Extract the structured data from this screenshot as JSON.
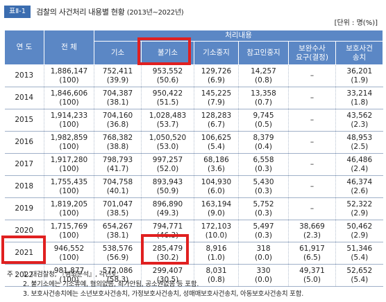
{
  "header": {
    "tag": "표Ⅱ-1",
    "title": "검찰의 사건처리 내용별 현황",
    "subtitle": "(2013년~2022년)",
    "unit": "[단위 : 명(%)]"
  },
  "table": {
    "year_header": "연 도",
    "total_header": "전 체",
    "group_header": "처리내용",
    "columns": [
      "기소",
      "불기소",
      "기소중지",
      "참고인중지",
      "보완수사\n요구(결정)",
      "보호사건\n송치"
    ],
    "rows": [
      {
        "year": "2013",
        "cells": [
          "1,886,147\n(100)",
          "752,411\n(39.9)",
          "953,552\n(50.6)",
          "129,726\n(6.9)",
          "14,257\n(0.8)",
          "–",
          "36,201\n(1.9)"
        ]
      },
      {
        "year": "2014",
        "cells": [
          "1,846,606\n(100)",
          "704,387\n(38.1)",
          "950,422\n(51.5)",
          "145,225\n(7.9)",
          "13,358\n(0.7)",
          "–",
          "33,214\n(1.8)"
        ]
      },
      {
        "year": "2015",
        "cells": [
          "1,914,233\n(100)",
          "704,160\n(36.8)",
          "1,028,483\n(53.7)",
          "128,283\n(6.7)",
          "9,745\n(0.5)",
          "–",
          "43,562\n(2.3)"
        ]
      },
      {
        "year": "2016",
        "cells": [
          "1,982,859\n(100)",
          "768,382\n(38.8)",
          "1,050,520\n(53.0)",
          "106,625\n(5.4)",
          "8,379\n(0.4)",
          "–",
          "48,953\n(2.5)"
        ]
      },
      {
        "year": "2017",
        "cells": [
          "1,917,280\n(100)",
          "798,793\n(41.7)",
          "997,257\n(52.0)",
          "68,186\n(3.6)",
          "6,558\n(0.3)",
          "–",
          "46,486\n(2.4)"
        ]
      },
      {
        "year": "2018",
        "cells": [
          "1,755,435\n(100)",
          "704,758\n(40.1)",
          "893,943\n(50.9)",
          "104,930\n(6.0)",
          "5,430\n(0.3)",
          "–",
          "46,374\n(2.6)"
        ]
      },
      {
        "year": "2019",
        "cells": [
          "1,819,205\n(100)",
          "701,047\n(38.5)",
          "896,890\n(49.3)",
          "163,194\n(9.0)",
          "5,752\n(0.3)",
          "–",
          "52,322\n(2.9)"
        ]
      },
      {
        "year": "2020",
        "cells": [
          "1,715,769\n(100)",
          "654,267\n(38.1)",
          "794,771\n(46.3)",
          "172,103\n(10.0)",
          "5,497\n(0.3)",
          "38,669\n(2.3)",
          "50,462\n(2.9)"
        ]
      },
      {
        "year": "2021",
        "cells": [
          "946,552\n(100)",
          "538,576\n(56.9)",
          "285,479\n(30.2)",
          "8,916\n(1.0)",
          "318\n(0.0)",
          "61,917\n(6.5)",
          "51,346\n(5.4)"
        ]
      },
      {
        "year": "2022",
        "cells": [
          "981,877\n(100)",
          "572,086\n(58.3)",
          "299,407\n(30.5)",
          "8,031\n(0.8)",
          "330\n(0.0)",
          "49,371\n(5.0)",
          "52,652\n(5.4)"
        ]
      }
    ]
  },
  "notes": {
    "label": "주 :",
    "items": [
      "1. 대검찰청, 『범죄분석』, 각년도.",
      "2. 불기소에는 기소유예, 혐의없음, 죄가안됨, 공소권없음 등 포함.",
      "3. 보호사건송치에는 소년보호사건송치, 가정보호사건송치, 성매매보호사건송치, 아동보호사건송치 포함."
    ]
  },
  "colors": {
    "header_bg": "#5b87c5",
    "tag_bg": "#3b6db0",
    "highlight": "#e02020"
  }
}
